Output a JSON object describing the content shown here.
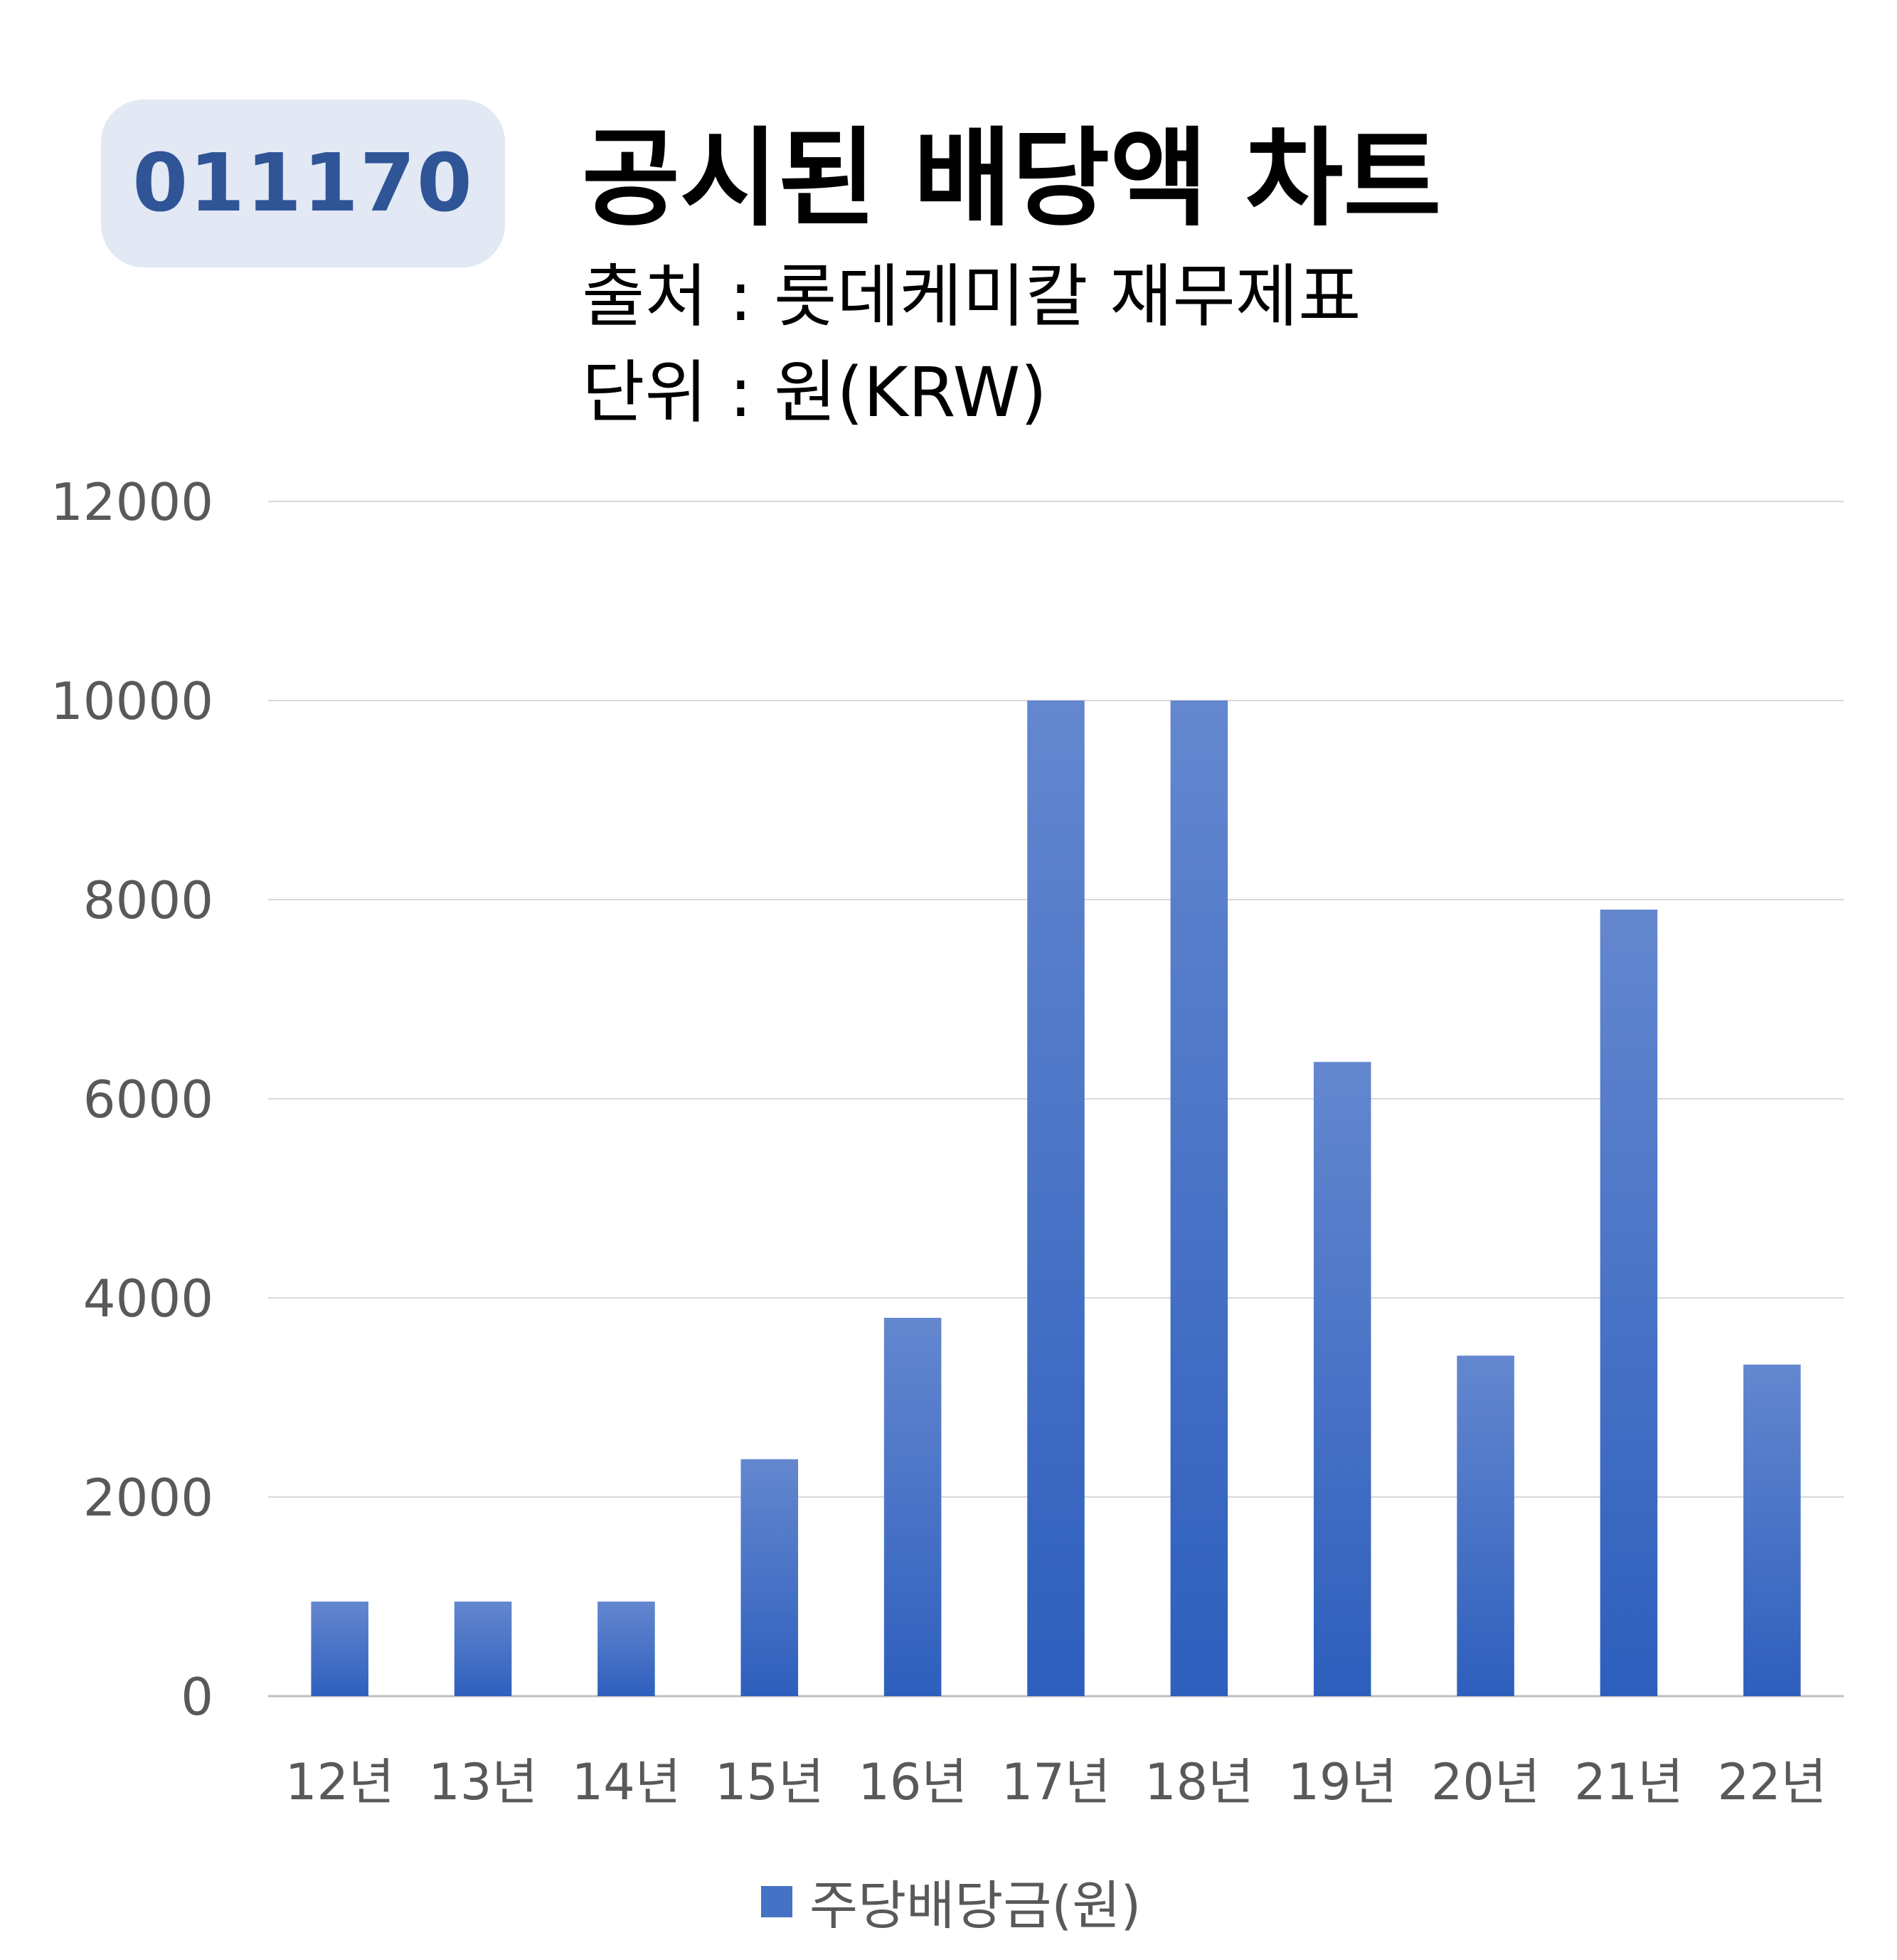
{
  "badge": {
    "code": "011170"
  },
  "header": {
    "title": "공시된 배당액 차트",
    "source": "출처 : 롯데케미칼 재무제표",
    "unit": "단위 : 원(KRW)"
  },
  "colors": {
    "badge_bg": "#e2e8f4",
    "badge_text": "#2f5597",
    "bar_top": "#6487cf",
    "bar_bottom": "#2e5fbd",
    "axis_text": "#595959",
    "grid": "#d9d9d9"
  },
  "chart_data": {
    "type": "bar",
    "categories": [
      "12년",
      "13년",
      "14년",
      "15년",
      "16년",
      "17년",
      "18년",
      "19년",
      "20년",
      "21년",
      "22년"
    ],
    "series": [
      {
        "name": "주당배당금(원)",
        "values": [
          950,
          950,
          950,
          2380,
          3800,
          10000,
          10000,
          6370,
          3420,
          7900,
          3330
        ]
      }
    ],
    "yticks": [
      "0",
      "2000",
      "4000",
      "6000",
      "8000",
      "10000",
      "12000"
    ],
    "ylim": [
      0,
      12000
    ],
    "grid": true,
    "legend": "bottom",
    "xlabel": "",
    "ylabel": ""
  }
}
